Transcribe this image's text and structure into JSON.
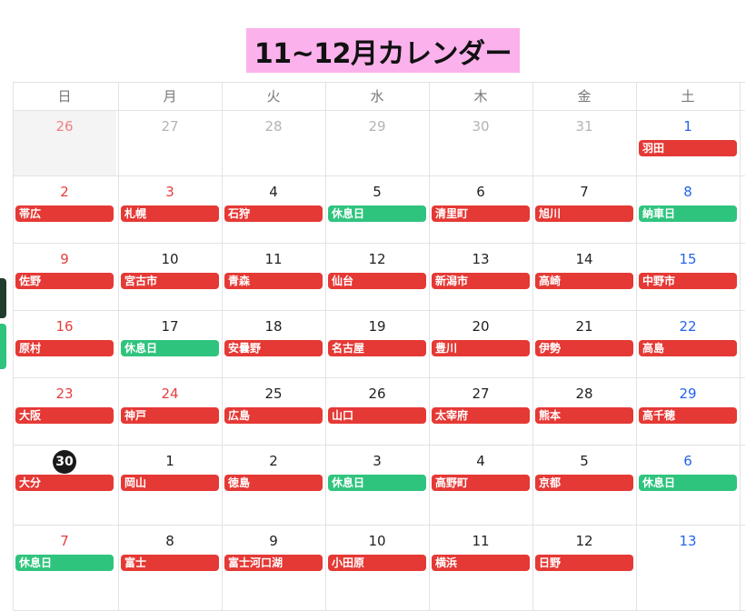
{
  "title": "11~12月カレンダー",
  "colors": {
    "title_bg": "#fbb1ec",
    "event_red": "#e53935",
    "event_green": "#2fc47e",
    "sunday": "#e53e3e",
    "saturday": "#2563eb"
  },
  "weekdays": [
    "日",
    "月",
    "火",
    "水",
    "木",
    "金",
    "土"
  ],
  "weeks": [
    [
      {
        "day": "26",
        "muted": true,
        "event": null
      },
      {
        "day": "27",
        "muted": true,
        "event": null
      },
      {
        "day": "28",
        "muted": true,
        "event": null
      },
      {
        "day": "29",
        "muted": true,
        "event": null
      },
      {
        "day": "30",
        "muted": true,
        "event": null
      },
      {
        "day": "31",
        "muted": true,
        "event": null
      },
      {
        "day": "1",
        "event": {
          "label": "羽田",
          "color": "red"
        }
      }
    ],
    [
      {
        "day": "2",
        "event": {
          "label": "帯広",
          "color": "red"
        }
      },
      {
        "day": "3",
        "holiday": true,
        "event": {
          "label": "札幌",
          "color": "red"
        }
      },
      {
        "day": "4",
        "event": {
          "label": "石狩",
          "color": "red"
        }
      },
      {
        "day": "5",
        "event": {
          "label": "休息日",
          "color": "green"
        }
      },
      {
        "day": "6",
        "event": {
          "label": "清里町",
          "color": "red"
        }
      },
      {
        "day": "7",
        "event": {
          "label": "旭川",
          "color": "red"
        }
      },
      {
        "day": "8",
        "event": {
          "label": "納車日",
          "color": "green"
        }
      }
    ],
    [
      {
        "day": "9",
        "event": {
          "label": "佐野",
          "color": "red"
        }
      },
      {
        "day": "10",
        "event": {
          "label": "宮古市",
          "color": "red"
        }
      },
      {
        "day": "11",
        "event": {
          "label": "青森",
          "color": "red"
        }
      },
      {
        "day": "12",
        "event": {
          "label": "仙台",
          "color": "red"
        }
      },
      {
        "day": "13",
        "event": {
          "label": "新潟市",
          "color": "red"
        }
      },
      {
        "day": "14",
        "event": {
          "label": "高崎",
          "color": "red"
        }
      },
      {
        "day": "15",
        "event": {
          "label": "中野市",
          "color": "red"
        }
      }
    ],
    [
      {
        "day": "16",
        "event": {
          "label": "原村",
          "color": "red"
        }
      },
      {
        "day": "17",
        "event": {
          "label": "休息日",
          "color": "green"
        }
      },
      {
        "day": "18",
        "event": {
          "label": "安曇野",
          "color": "red"
        }
      },
      {
        "day": "19",
        "event": {
          "label": "名古屋",
          "color": "red"
        }
      },
      {
        "day": "20",
        "event": {
          "label": "豊川",
          "color": "red"
        }
      },
      {
        "day": "21",
        "event": {
          "label": "伊勢",
          "color": "red"
        }
      },
      {
        "day": "22",
        "event": {
          "label": "高島",
          "color": "red"
        }
      }
    ],
    [
      {
        "day": "23",
        "event": {
          "label": "大阪",
          "color": "red"
        }
      },
      {
        "day": "24",
        "holiday": true,
        "event": {
          "label": "神戸",
          "color": "red"
        }
      },
      {
        "day": "25",
        "event": {
          "label": "広島",
          "color": "red"
        }
      },
      {
        "day": "26",
        "event": {
          "label": "山口",
          "color": "red"
        }
      },
      {
        "day": "27",
        "event": {
          "label": "太宰府",
          "color": "red"
        }
      },
      {
        "day": "28",
        "event": {
          "label": "熊本",
          "color": "red"
        }
      },
      {
        "day": "29",
        "event": {
          "label": "高千穂",
          "color": "red"
        }
      }
    ],
    [
      {
        "day": "30",
        "today": true,
        "event": {
          "label": "大分",
          "color": "red"
        }
      },
      {
        "day": "1",
        "event": {
          "label": "岡山",
          "color": "red"
        }
      },
      {
        "day": "2",
        "event": {
          "label": "徳島",
          "color": "red"
        }
      },
      {
        "day": "3",
        "event": {
          "label": "休息日",
          "color": "green"
        }
      },
      {
        "day": "4",
        "event": {
          "label": "高野町",
          "color": "red"
        }
      },
      {
        "day": "5",
        "event": {
          "label": "京都",
          "color": "red"
        }
      },
      {
        "day": "6",
        "event": {
          "label": "休息日",
          "color": "green"
        }
      }
    ],
    [
      {
        "day": "7",
        "event": {
          "label": "休息日",
          "color": "green"
        }
      },
      {
        "day": "8",
        "event": {
          "label": "富士",
          "color": "red"
        }
      },
      {
        "day": "9",
        "event": {
          "label": "富士河口湖",
          "color": "red"
        }
      },
      {
        "day": "10",
        "event": {
          "label": "小田原",
          "color": "red"
        }
      },
      {
        "day": "11",
        "event": {
          "label": "横浜",
          "color": "red"
        }
      },
      {
        "day": "12",
        "event": {
          "label": "日野",
          "color": "red"
        }
      },
      {
        "day": "13",
        "event": null
      }
    ]
  ]
}
